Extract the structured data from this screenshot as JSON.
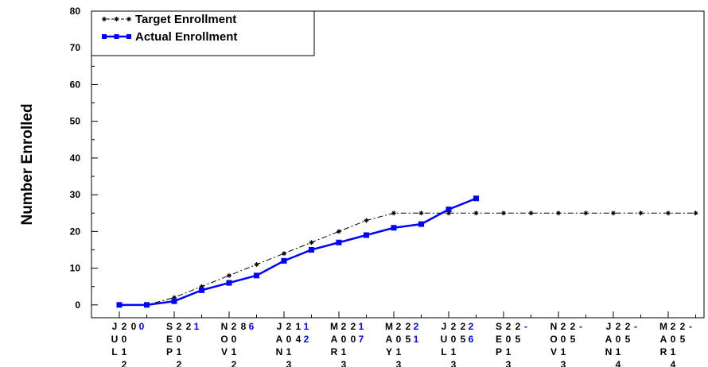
{
  "chart_data": {
    "type": "line",
    "y_label": "Number Enrolled",
    "categories": [
      "JUL",
      null,
      "SEP",
      null,
      "NOV",
      null,
      "JAN",
      null,
      "MAR",
      null,
      "MAY",
      null,
      "JUL",
      null,
      "SEP",
      null,
      "NOV",
      null,
      "JAN",
      null,
      "MAR",
      null
    ],
    "category_years": [
      "2012",
      null,
      "2012",
      null,
      "2012",
      null,
      "2013",
      null,
      "2013",
      null,
      "2013",
      null,
      "2013",
      null,
      "2013",
      null,
      "2013",
      null,
      "2014",
      null,
      "2014",
      null
    ],
    "series": [
      {
        "name": "Target Enrollment",
        "color": "#000000",
        "values": [
          0,
          0,
          2,
          5,
          8,
          11,
          14,
          17,
          20,
          23,
          25,
          25,
          25,
          25,
          25,
          25,
          25,
          25,
          25,
          25,
          25,
          25
        ],
        "value_labels": [
          "0",
          null,
          "2",
          null,
          "8",
          null,
          "14",
          null,
          "20",
          null,
          "25",
          null,
          "25",
          null,
          "25",
          null,
          "25",
          null,
          "25",
          null,
          "25",
          null
        ]
      },
      {
        "name": "Actual Enrollment",
        "color": "#0000ff",
        "values": [
          0,
          0,
          1,
          4,
          6,
          8,
          12,
          15,
          17,
          19,
          21,
          22,
          26,
          29,
          null,
          null,
          null,
          null,
          null,
          null,
          null,
          null
        ],
        "value_labels": [
          "0",
          null,
          "1",
          null,
          "6",
          null,
          "12",
          null,
          "17",
          null,
          "21",
          null,
          "26",
          null,
          "-",
          null,
          "-",
          null,
          "-",
          null,
          "-",
          null
        ]
      }
    ],
    "ylim": [
      -3.5,
      80
    ],
    "yticks": [
      0,
      10,
      20,
      30,
      40,
      50,
      60,
      70,
      80
    ],
    "legend": "upper left"
  }
}
